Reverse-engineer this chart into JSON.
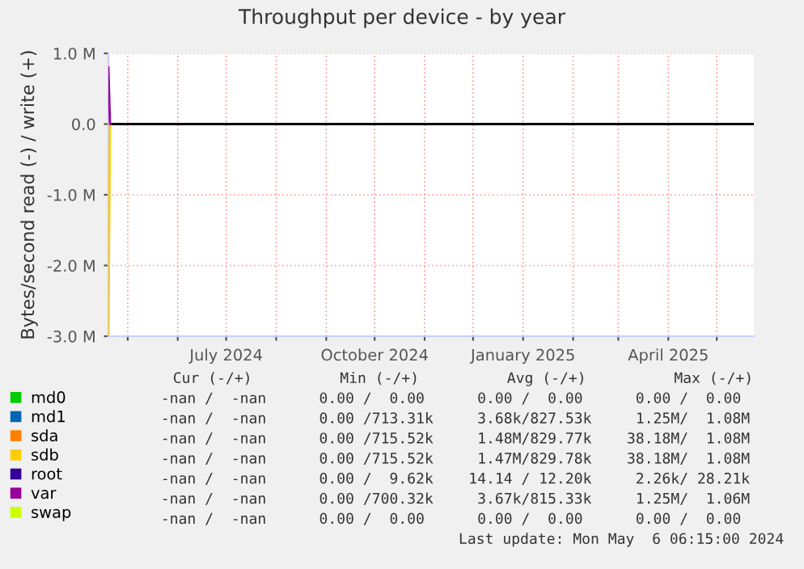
{
  "chart_data": {
    "type": "line",
    "title": "Throughput per device - by year",
    "ylabel": "Bytes/second read (-) / write (+)",
    "x": [
      "2024-04-19",
      "2024-04-20"
    ],
    "series": [
      {
        "name": "md0",
        "color": "#00cc00",
        "values": [
          null,
          null
        ]
      },
      {
        "name": "md1",
        "color": "#0066b3",
        "values": [
          null,
          null
        ]
      },
      {
        "name": "sda",
        "color": "#ff8000",
        "values": [
          null,
          null
        ]
      },
      {
        "name": "sdb",
        "color": "#ffcc00",
        "values": [
          -3.0,
          0
        ]
      },
      {
        "name": "root",
        "color": "#330099",
        "values": [
          null,
          null
        ]
      },
      {
        "name": "var",
        "color": "#990099",
        "values": [
          0.8,
          0
        ]
      },
      {
        "name": "swap",
        "color": "#ccff00",
        "values": [
          null,
          null
        ]
      }
    ],
    "xlim": [
      "2024-04-19",
      "2025-05-24"
    ],
    "xticks": [
      {
        "value": "2024-05-01",
        "label": null
      },
      {
        "value": "2024-06-01",
        "label": null
      },
      {
        "value": "2024-07-01",
        "label": "July 2024"
      },
      {
        "value": "2024-08-01",
        "label": null
      },
      {
        "value": "2024-09-01",
        "label": null
      },
      {
        "value": "2024-10-01",
        "label": "October 2024"
      },
      {
        "value": "2024-11-01",
        "label": null
      },
      {
        "value": "2024-12-01",
        "label": null
      },
      {
        "value": "2025-01-01",
        "label": "January 2025"
      },
      {
        "value": "2025-02-01",
        "label": null
      },
      {
        "value": "2025-03-01",
        "label": null
      },
      {
        "value": "2025-04-01",
        "label": "April 2025"
      },
      {
        "value": "2025-05-01",
        "label": null
      }
    ],
    "ylim": [
      -3.0,
      1.0
    ],
    "yticks": [
      {
        "value": -3,
        "label": "-3.0 M"
      },
      {
        "value": -2,
        "label": "-2.0 M"
      },
      {
        "value": -1,
        "label": "-1.0 M"
      },
      {
        "value": 0,
        "label": "0.0"
      },
      {
        "value": 1,
        "label": "1.0 M"
      }
    ],
    "ref_lines": [
      {
        "axis": "y",
        "value": 0,
        "color": "#000000"
      }
    ],
    "grid": true,
    "legend": "bottom",
    "annotations": [
      "Cur (-/+)          Min (-/+)          Avg (-/+)          Max (-/+)",
      "-nan /  -nan      0.00 /  0.00      0.00 /  0.00      0.00 /  0.00",
      "-nan /  -nan      0.00 /713.31k     3.68k/827.53k     1.25M/  1.08M",
      "-nan /  -nan      0.00 /715.52k     1.48M/829.77k    38.18M/  1.08M",
      "-nan /  -nan      0.00 /715.52k     1.47M/829.78k    38.18M/  1.08M",
      "-nan /  -nan      0.00 /  9.62k    14.14 / 12.20k     2.26k/ 28.21k",
      "-nan /  -nan      0.00 /700.32k     3.67k/815.33k     1.25M/  1.06M",
      "-nan /  -nan      0.00 /  0.00      0.00 /  0.00      0.00 /  0.00",
      "Last update: Mon May  6 06:15:00 2024"
    ]
  }
}
